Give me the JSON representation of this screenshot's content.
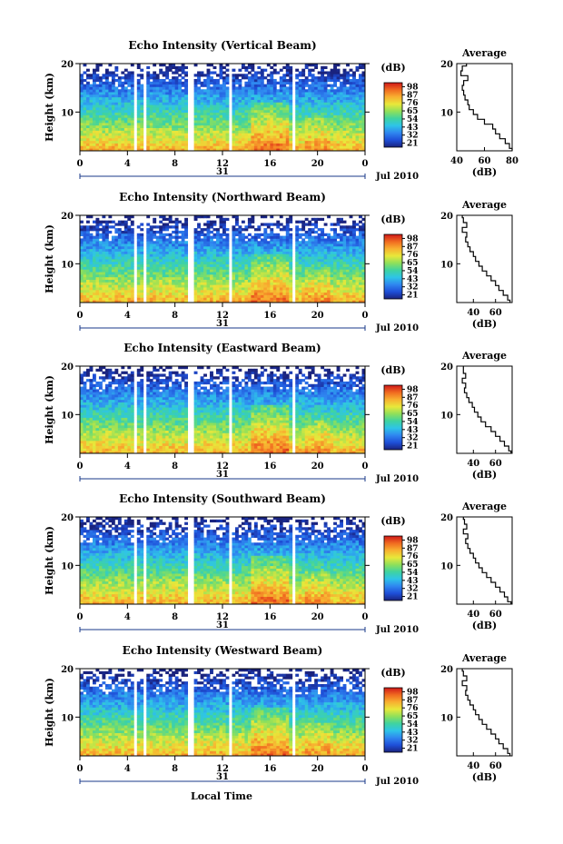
{
  "figure": {
    "xlabel": "Local Time",
    "date_label": "Jul 2010",
    "day_label": "31",
    "avg_title": "Average",
    "avg_xlabel": "(dB)",
    "colorbar_unit": "(dB)",
    "colorbar_ticks": [
      "21",
      "32",
      "43",
      "54",
      "65",
      "76",
      "87",
      "98"
    ],
    "colorbar_colors": [
      "#1a237e",
      "#1e4fd8",
      "#2f86f0",
      "#2ec4e8",
      "#3fd3a0",
      "#8fe05a",
      "#e8e83a",
      "#f8b030",
      "#f06a20",
      "#d01818"
    ],
    "data_color": "#000000"
  },
  "chart_data": [
    {
      "type": "heatmap",
      "title": "Echo Intensity (Vertical Beam)",
      "ylabel": "Height (km)",
      "xlim": [
        0,
        24
      ],
      "ylim": [
        2,
        20
      ],
      "xticks": [
        "0",
        "4",
        "8",
        "12",
        "16",
        "20",
        "0"
      ],
      "yticks": [
        "10",
        "20"
      ],
      "clim": [
        21,
        98
      ],
      "missing_time_ranges_hr": [
        [
          4.4,
          4.7
        ],
        [
          5.3,
          5.6
        ],
        [
          9.2,
          9.5
        ],
        [
          12.6,
          12.9
        ],
        [
          18.0,
          18.2
        ]
      ],
      "average_profile": {
        "xlim": [
          40,
          80
        ],
        "xticks": [
          "40",
          "60",
          "80"
        ],
        "yticks": [
          "10",
          "20"
        ],
        "height_km": [
          2,
          3,
          4,
          5,
          6,
          7,
          8,
          9,
          10,
          11,
          12,
          13,
          14,
          15,
          16,
          17,
          18,
          19,
          20
        ],
        "intensity_db": [
          80,
          78,
          75,
          71,
          68,
          66,
          60,
          55,
          52,
          49,
          48,
          46,
          45,
          44,
          45,
          48,
          43,
          44,
          47
        ]
      }
    },
    {
      "type": "heatmap",
      "title": "Echo Intensity (Northward Beam)",
      "ylabel": "Height (km)",
      "xlim": [
        0,
        24
      ],
      "ylim": [
        2,
        20
      ],
      "xticks": [
        "0",
        "4",
        "8",
        "12",
        "16",
        "20",
        "0"
      ],
      "yticks": [
        "10",
        "20"
      ],
      "clim": [
        21,
        98
      ],
      "missing_time_ranges_hr": [
        [
          4.4,
          4.7
        ],
        [
          5.3,
          5.6
        ],
        [
          9.2,
          9.5
        ],
        [
          12.6,
          12.9
        ],
        [
          18.0,
          18.2
        ]
      ],
      "average_profile": {
        "xlim": [
          25,
          75
        ],
        "xticks": [
          "40",
          "60"
        ],
        "yticks": [
          "10",
          "20"
        ],
        "height_km": [
          2,
          3,
          4,
          5,
          6,
          7,
          8,
          9,
          10,
          11,
          12,
          13,
          14,
          15,
          16,
          17,
          18,
          19,
          20
        ],
        "intensity_db": [
          73,
          71,
          67,
          63,
          60,
          56,
          52,
          48,
          45,
          42,
          40,
          37,
          35,
          33,
          34,
          30,
          34,
          31,
          30
        ]
      }
    },
    {
      "type": "heatmap",
      "title": "Echo Intensity (Eastward Beam)",
      "ylabel": "Height (km)",
      "xlim": [
        0,
        24
      ],
      "ylim": [
        2,
        20
      ],
      "xticks": [
        "0",
        "4",
        "8",
        "12",
        "16",
        "20",
        "0"
      ],
      "yticks": [
        "10",
        "20"
      ],
      "clim": [
        21,
        98
      ],
      "missing_time_ranges_hr": [
        [
          4.4,
          4.7
        ],
        [
          5.3,
          5.6
        ],
        [
          9.2,
          9.5
        ],
        [
          12.6,
          12.9
        ],
        [
          18.0,
          18.2
        ]
      ],
      "average_profile": {
        "xlim": [
          25,
          75
        ],
        "xticks": [
          "40",
          "60"
        ],
        "yticks": [
          "10",
          "20"
        ],
        "height_km": [
          2,
          3,
          4,
          5,
          6,
          7,
          8,
          9,
          10,
          11,
          12,
          13,
          14,
          15,
          16,
          17,
          18,
          19,
          20
        ],
        "intensity_db": [
          74,
          72,
          68,
          64,
          60,
          56,
          51,
          47,
          44,
          41,
          39,
          36,
          34,
          32,
          33,
          30,
          33,
          31,
          31
        ]
      }
    },
    {
      "type": "heatmap",
      "title": "Echo Intensity (Southward Beam)",
      "ylabel": "Height (km)",
      "xlim": [
        0,
        24
      ],
      "ylim": [
        2,
        20
      ],
      "xticks": [
        "0",
        "4",
        "8",
        "12",
        "16",
        "20",
        "0"
      ],
      "yticks": [
        "10",
        "20"
      ],
      "clim": [
        21,
        98
      ],
      "missing_time_ranges_hr": [
        [
          4.4,
          4.7
        ],
        [
          5.3,
          5.6
        ],
        [
          9.2,
          9.5
        ],
        [
          12.6,
          12.9
        ],
        [
          18.0,
          18.2
        ]
      ],
      "average_profile": {
        "xlim": [
          25,
          75
        ],
        "xticks": [
          "40",
          "60"
        ],
        "yticks": [
          "10",
          "20"
        ],
        "height_km": [
          2,
          3,
          4,
          5,
          6,
          7,
          8,
          9,
          10,
          11,
          12,
          13,
          14,
          15,
          16,
          17,
          18,
          19,
          20
        ],
        "intensity_db": [
          74,
          71,
          68,
          64,
          60,
          56,
          52,
          48,
          45,
          42,
          40,
          37,
          35,
          33,
          35,
          31,
          34,
          32,
          31
        ]
      }
    },
    {
      "type": "heatmap",
      "title": "Echo Intensity (Westward Beam)",
      "ylabel": "Height (km)",
      "xlim": [
        0,
        24
      ],
      "ylim": [
        2,
        20
      ],
      "xticks": [
        "0",
        "4",
        "8",
        "12",
        "16",
        "20",
        "0"
      ],
      "yticks": [
        "10",
        "20"
      ],
      "clim": [
        21,
        98
      ],
      "missing_time_ranges_hr": [
        [
          4.4,
          4.7
        ],
        [
          5.3,
          5.6
        ],
        [
          9.2,
          9.5
        ],
        [
          12.6,
          12.9
        ],
        [
          18.0,
          18.2
        ]
      ],
      "average_profile": {
        "xlim": [
          25,
          75
        ],
        "xticks": [
          "40",
          "60"
        ],
        "yticks": [
          "10",
          "20"
        ],
        "height_km": [
          2,
          3,
          4,
          5,
          6,
          7,
          8,
          9,
          10,
          11,
          12,
          13,
          14,
          15,
          16,
          17,
          18,
          19,
          20
        ],
        "intensity_db": [
          73,
          71,
          67,
          63,
          60,
          56,
          52,
          48,
          45,
          42,
          40,
          37,
          35,
          33,
          34,
          30,
          34,
          31,
          30
        ]
      }
    }
  ]
}
